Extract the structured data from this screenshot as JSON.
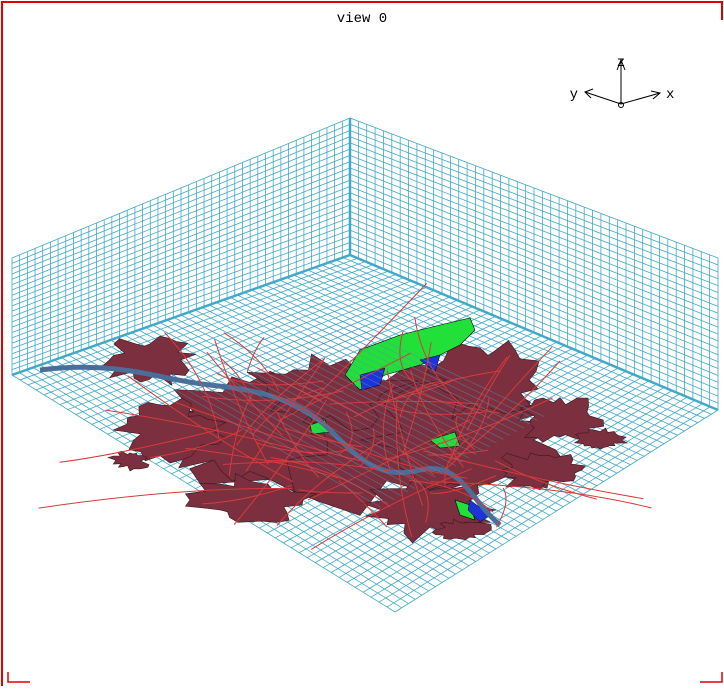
{
  "window": {
    "title": "view 0"
  },
  "axes": {
    "z": "z",
    "y": "y",
    "x": "x"
  }
}
